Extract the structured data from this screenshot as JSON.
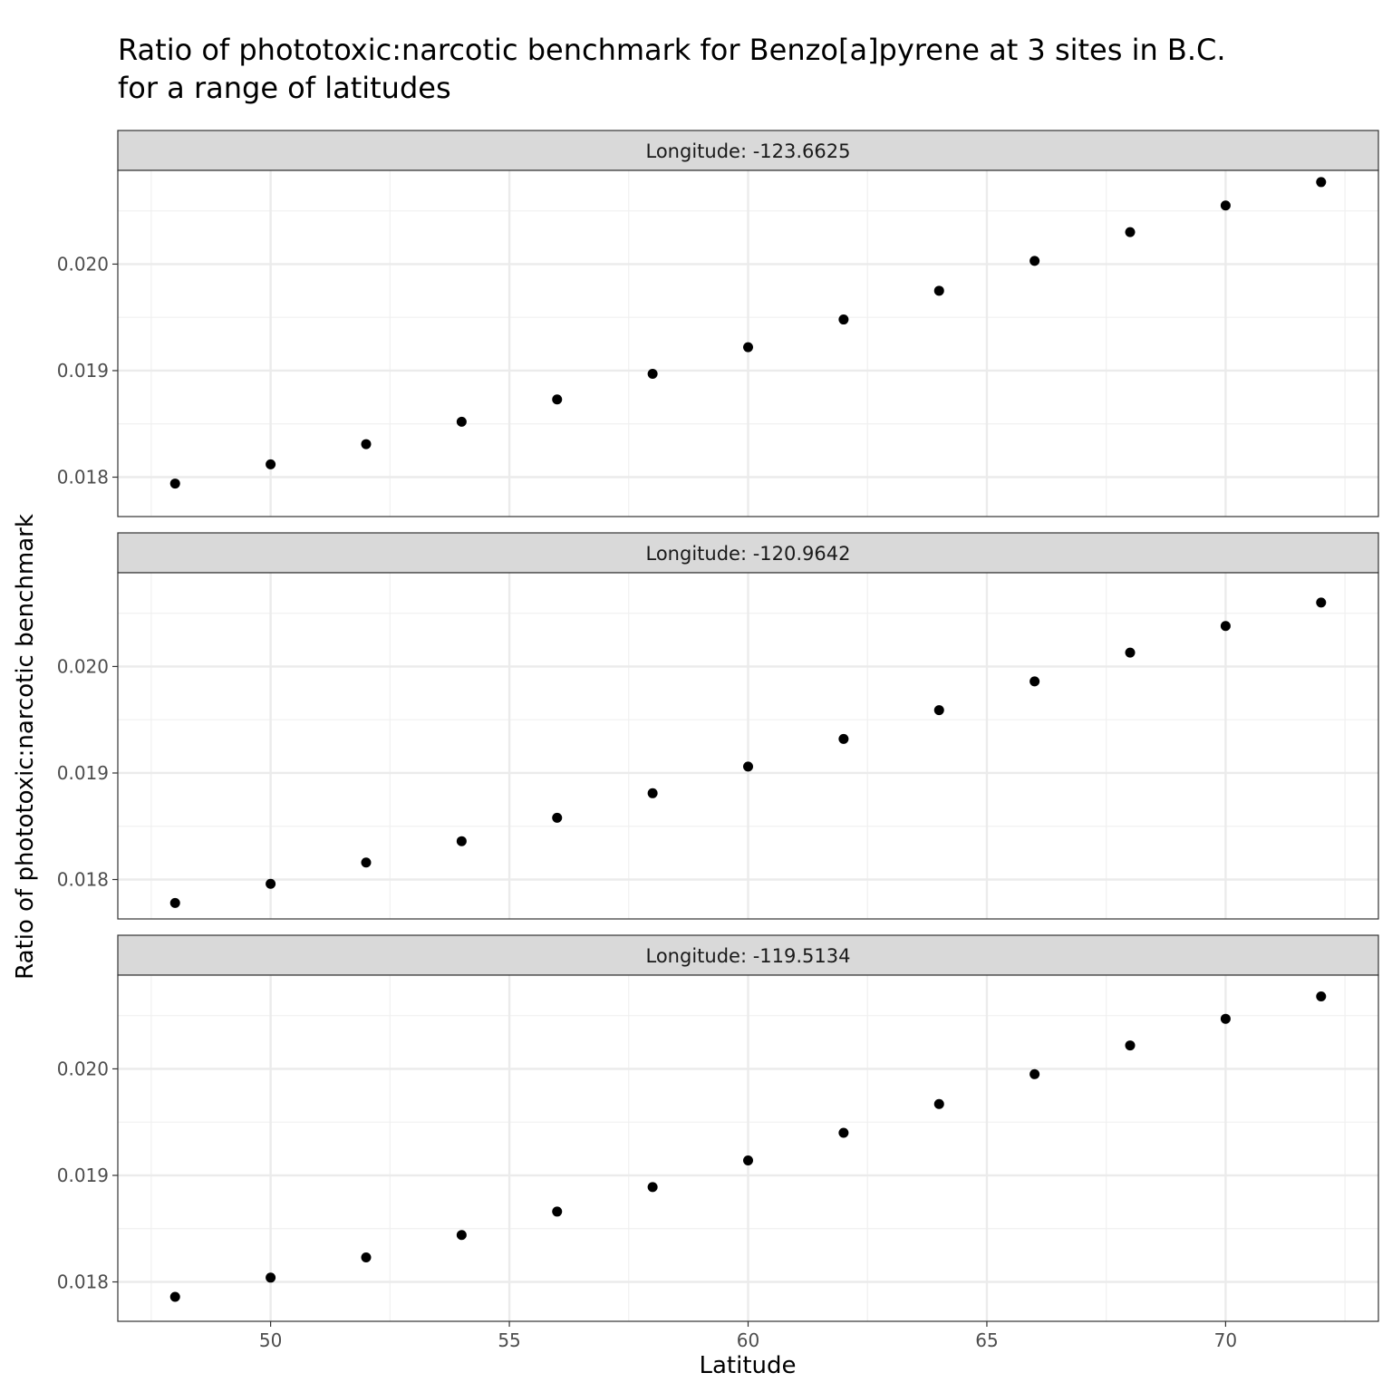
{
  "chart_data": {
    "type": "scatter",
    "title": "Ratio of phototoxic:narcotic benchmark for Benzo[a]pyrene at 3 sites in B.C.",
    "subtitle": "for a range of latitudes",
    "xlabel": "Latitude",
    "ylabel": "Ratio of phototoxic:narcotic benchmark",
    "xlim": [
      46.8,
      73.2
    ],
    "ylim": [
      0.01763,
      0.02088
    ],
    "xticks": [
      50,
      55,
      60,
      65,
      70
    ],
    "xtick_labels": [
      "50",
      "55",
      "60",
      "65",
      "70"
    ],
    "yticks": [
      0.018,
      0.019,
      0.02
    ],
    "ytick_labels": [
      "0.018",
      "0.019",
      "0.020"
    ],
    "grid": true,
    "legend": "none",
    "point_color": "#000000",
    "panels": [
      {
        "strip_label": "Longitude:  -123.6625",
        "x": [
          48,
          50,
          52,
          54,
          56,
          58,
          60,
          62,
          64,
          66,
          68,
          70,
          72
        ],
        "y": [
          0.01794,
          0.01812,
          0.01831,
          0.01852,
          0.01873,
          0.01897,
          0.01922,
          0.01948,
          0.01975,
          0.02003,
          0.0203,
          0.02055,
          0.02077
        ]
      },
      {
        "strip_label": "Longitude:  -120.9642",
        "x": [
          48,
          50,
          52,
          54,
          56,
          58,
          60,
          62,
          64,
          66,
          68,
          70,
          72
        ],
        "y": [
          0.01778,
          0.01796,
          0.01816,
          0.01836,
          0.01858,
          0.01881,
          0.01906,
          0.01932,
          0.01959,
          0.01986,
          0.02013,
          0.02038,
          0.0206
        ]
      },
      {
        "strip_label": "Longitude:  -119.5134",
        "x": [
          48,
          50,
          52,
          54,
          56,
          58,
          60,
          62,
          64,
          66,
          68,
          70,
          72
        ],
        "y": [
          0.01786,
          0.01804,
          0.01823,
          0.01844,
          0.01866,
          0.01889,
          0.01914,
          0.0194,
          0.01967,
          0.01995,
          0.02022,
          0.02047,
          0.02068
        ]
      }
    ]
  }
}
